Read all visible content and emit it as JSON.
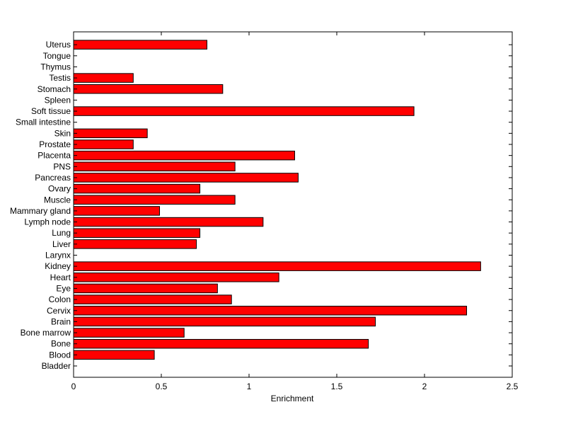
{
  "chart_data": {
    "type": "bar",
    "orientation": "horizontal",
    "title": "",
    "xlabel": "Enrichment",
    "ylabel": "",
    "xlim": [
      0,
      2.5
    ],
    "x_ticks": [
      0,
      0.5,
      1,
      1.5,
      2,
      2.5
    ],
    "x_tick_labels": [
      "0",
      "0.5",
      "1",
      "1.5",
      "2",
      "2.5"
    ],
    "grid": false,
    "legend": "none",
    "bar_color": "#ff0000",
    "bar_edge_color": "#000000",
    "categories": [
      "Bladder",
      "Blood",
      "Bone",
      "Bone marrow",
      "Brain",
      "Cervix",
      "Colon",
      "Eye",
      "Heart",
      "Kidney",
      "Larynx",
      "Liver",
      "Lung",
      "Lymph node",
      "Mammary gland",
      "Muscle",
      "Ovary",
      "Pancreas",
      "PNS",
      "Placenta",
      "Prostate",
      "Skin",
      "Small intestine",
      "Soft tissue",
      "Spleen",
      "Stomach",
      "Testis",
      "Thymus",
      "Tongue",
      "Uterus"
    ],
    "values": [
      0,
      0.46,
      1.68,
      0.63,
      1.72,
      2.24,
      0.9,
      0.82,
      1.17,
      2.32,
      0,
      0.7,
      0.72,
      1.08,
      0.49,
      0.92,
      0.72,
      1.28,
      0.92,
      1.26,
      0.34,
      0.42,
      0,
      1.94,
      0,
      0.85,
      0.34,
      0,
      0,
      0.76
    ]
  }
}
